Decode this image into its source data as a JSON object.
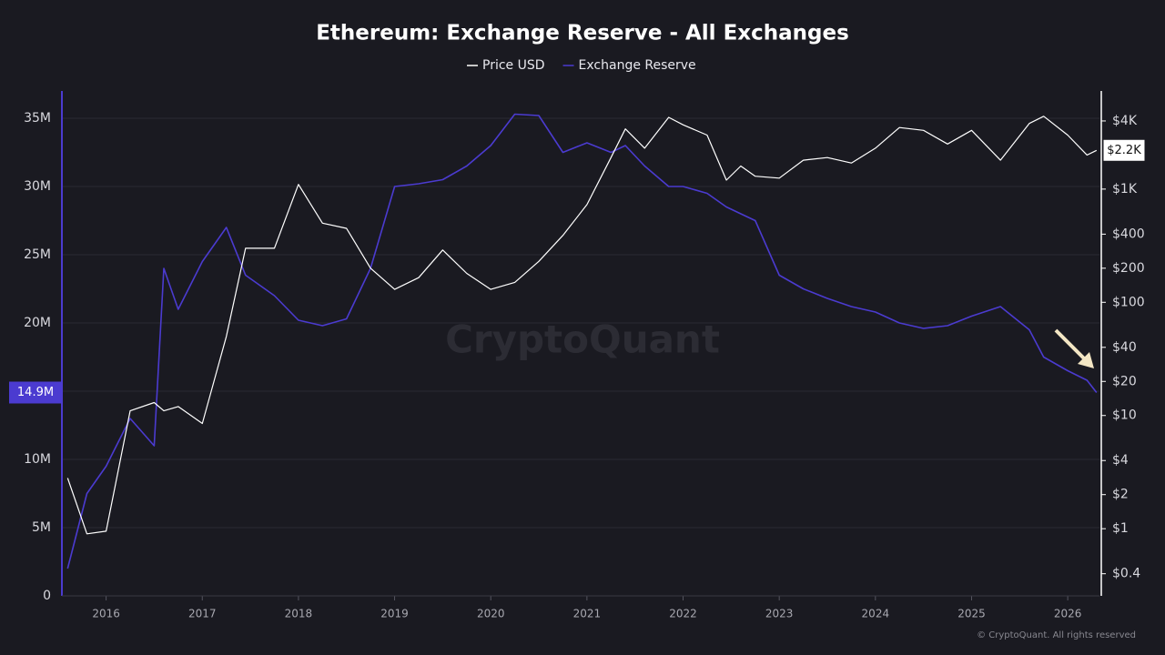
{
  "chart_data": {
    "type": "line",
    "title": "Ethereum: Exchange Reserve - All Exchanges",
    "watermark": "CryptoQuant",
    "credit": "© CryptoQuant. All rights reserved",
    "x": [
      2015.6,
      2015.8,
      2016.0,
      2016.25,
      2016.5,
      2016.6,
      2016.75,
      2017.0,
      2017.25,
      2017.45,
      2017.75,
      2018.0,
      2018.25,
      2018.5,
      2018.75,
      2019.0,
      2019.25,
      2019.5,
      2019.75,
      2020.0,
      2020.25,
      2020.5,
      2020.75,
      2021.0,
      2021.25,
      2021.4,
      2021.6,
      2021.85,
      2022.0,
      2022.25,
      2022.45,
      2022.6,
      2022.75,
      2023.0,
      2023.25,
      2023.5,
      2023.75,
      2024.0,
      2024.25,
      2024.5,
      2024.75,
      2025.0,
      2025.3,
      2025.6,
      2025.75,
      2026.0,
      2026.2,
      2026.3
    ],
    "xlim": [
      2015.54,
      2026.33
    ],
    "xticks": [
      2016,
      2017,
      2018,
      2019,
      2020,
      2021,
      2022,
      2023,
      2024,
      2025,
      2026
    ],
    "ylim": [
      0,
      37000000
    ],
    "yticks": [
      {
        "value": 0,
        "label": "0"
      },
      {
        "value": 5000000,
        "label": "5M"
      },
      {
        "value": 10000000,
        "label": "10M"
      },
      {
        "value": 15000000,
        "label": "15M"
      },
      {
        "value": 20000000,
        "label": "20M"
      },
      {
        "value": 25000000,
        "label": "25M"
      },
      {
        "value": 30000000,
        "label": "30M"
      },
      {
        "value": 35000000,
        "label": "35M"
      }
    ],
    "y2lim": [
      0.255,
      7360
    ],
    "y2scale": "log",
    "y2ticks": [
      {
        "value": 0.4,
        "label": "$0.4"
      },
      {
        "value": 1,
        "label": "$1"
      },
      {
        "value": 2,
        "label": "$2"
      },
      {
        "value": 4,
        "label": "$4"
      },
      {
        "value": 10,
        "label": "$10"
      },
      {
        "value": 20,
        "label": "$20"
      },
      {
        "value": 40,
        "label": "$40"
      },
      {
        "value": 100,
        "label": "$100"
      },
      {
        "value": 200,
        "label": "$200"
      },
      {
        "value": 400,
        "label": "$400"
      },
      {
        "value": 1000,
        "label": "$1K"
      },
      {
        "value": 4000,
        "label": "$4K"
      }
    ],
    "grid": true,
    "series": [
      {
        "name": "Price USD",
        "color": "#ffffff",
        "axis": "y2",
        "values": [
          2.8,
          0.9,
          0.95,
          11,
          13,
          11,
          12,
          8.5,
          50,
          300,
          300,
          1100,
          500,
          450,
          200,
          130,
          165,
          290,
          180,
          130,
          150,
          230,
          390,
          730,
          1900,
          3400,
          2300,
          4300,
          3700,
          3000,
          1200,
          1600,
          1300,
          1250,
          1800,
          1900,
          1700,
          2300,
          3500,
          3300,
          2500,
          3300,
          1800,
          3800,
          4400,
          3000,
          2000,
          2200
        ],
        "value_labels": [
          null,
          null,
          null,
          null,
          null,
          null,
          null,
          null,
          null,
          null,
          null,
          null,
          null,
          null,
          null,
          null,
          null,
          null,
          null,
          null,
          null,
          null,
          null,
          null,
          null,
          null,
          null,
          null,
          null,
          null,
          null,
          null,
          null,
          null,
          null,
          null,
          null,
          null,
          null,
          null,
          null,
          null,
          null,
          null,
          null,
          null,
          null,
          "$2.2K"
        ]
      },
      {
        "name": "Exchange Reserve",
        "color": "#4b3bd0",
        "axis": "y",
        "values": [
          2000000,
          7500000,
          9500000,
          13000000,
          11000000,
          24000000,
          21000000,
          24500000,
          27000000,
          23500000,
          22000000,
          20200000,
          19800000,
          20300000,
          24000000,
          30000000,
          30200000,
          30500000,
          31500000,
          33000000,
          35300000,
          35200000,
          32500000,
          33200000,
          32500000,
          33000000,
          31500000,
          30000000,
          30000000,
          29500000,
          28500000,
          28000000,
          27500000,
          23500000,
          22500000,
          21800000,
          21200000,
          20800000,
          20000000,
          19600000,
          19800000,
          20500000,
          21200000,
          19500000,
          17500000,
          16500000,
          15800000,
          14900000
        ],
        "value_labels": [
          null,
          null,
          null,
          null,
          null,
          null,
          null,
          null,
          null,
          null,
          null,
          null,
          null,
          null,
          null,
          null,
          null,
          null,
          null,
          null,
          null,
          null,
          null,
          null,
          null,
          null,
          null,
          null,
          null,
          null,
          null,
          null,
          null,
          null,
          null,
          null,
          null,
          null,
          null,
          null,
          null,
          null,
          null,
          null,
          null,
          null,
          null,
          "14.9M"
        ]
      }
    ]
  }
}
